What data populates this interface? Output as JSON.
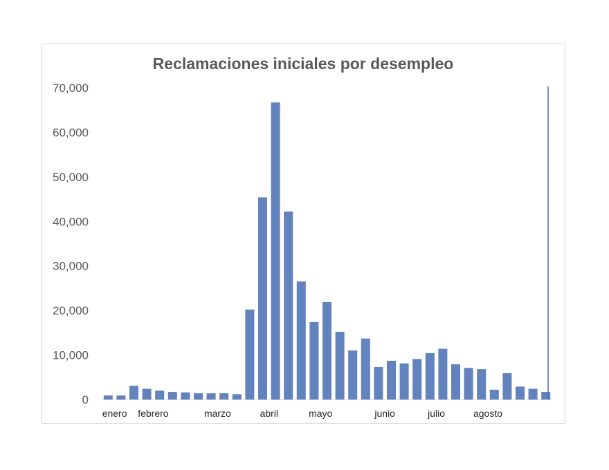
{
  "chart_data": {
    "type": "bar",
    "title": "Reclamaciones iniciales por desempleo",
    "xlabel": "",
    "ylabel": "",
    "ylim": [
      0,
      70000
    ],
    "yticks": [
      0,
      10000,
      20000,
      30000,
      40000,
      50000,
      60000,
      70000
    ],
    "ytick_labels": [
      "0",
      "10,000",
      "20,000",
      "30,000",
      "40,000",
      "50,000",
      "60,000",
      "70,000"
    ],
    "grid": false,
    "legend": "none",
    "bar_color": "#6383BF",
    "values": [
      900,
      900,
      3100,
      2400,
      2000,
      1700,
      1600,
      1400,
      1400,
      1400,
      1200,
      20200,
      45400,
      66700,
      42200,
      26500,
      17400,
      21900,
      15200,
      11000,
      13700,
      7300,
      8700,
      8100,
      9100,
      10400,
      11400,
      7900,
      7100,
      6800,
      2200,
      5900,
      2900,
      2400,
      1700
    ],
    "month_labels": [
      {
        "label": "enero",
        "index": 0.5
      },
      {
        "label": "febrero",
        "index": 3.5
      },
      {
        "label": "marzo",
        "index": 8.5
      },
      {
        "label": "abril",
        "index": 12.5
      },
      {
        "label": "mayo",
        "index": 16.5
      },
      {
        "label": "junio",
        "index": 21.5
      },
      {
        "label": "julio",
        "index": 25.5
      },
      {
        "label": "agosto",
        "index": 29.5
      }
    ]
  }
}
